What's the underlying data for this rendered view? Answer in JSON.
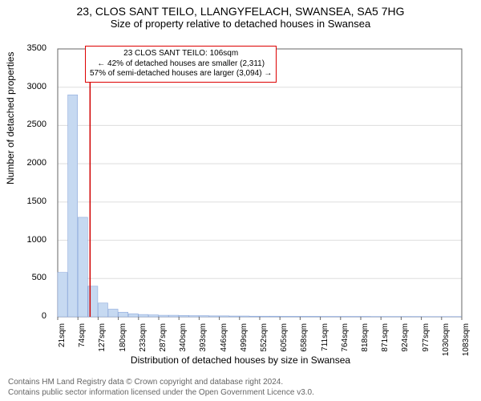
{
  "titles": {
    "main": "23, CLOS SANT TEILO, LLANGYFELACH, SWANSEA, SA5 7HG",
    "sub": "Size of property relative to detached houses in Swansea"
  },
  "axes": {
    "ylabel": "Number of detached properties",
    "xlabel": "Distribution of detached houses by size in Swansea"
  },
  "callout": {
    "line1": "23 CLOS SANT TEILO: 106sqm",
    "line2": "← 42% of detached houses are smaller (2,311)",
    "line3": "57% of semi-detached houses are larger (3,094) →"
  },
  "footer": {
    "line1": "Contains HM Land Registry data © Crown copyright and database right 2024.",
    "line2": "Contains public sector information licensed under the Open Government Licence v3.0."
  },
  "chart": {
    "type": "histogram",
    "ylim": [
      0,
      3500
    ],
    "ytick_step": 500,
    "yticks": [
      0,
      500,
      1000,
      1500,
      2000,
      2500,
      3000,
      3500
    ],
    "xticks": [
      "21sqm",
      "74sqm",
      "127sqm",
      "180sqm",
      "233sqm",
      "287sqm",
      "340sqm",
      "393sqm",
      "446sqm",
      "499sqm",
      "552sqm",
      "605sqm",
      "658sqm",
      "711sqm",
      "764sqm",
      "818sqm",
      "871sqm",
      "924sqm",
      "977sqm",
      "1030sqm",
      "1083sqm"
    ],
    "bars": [
      580,
      2900,
      1300,
      400,
      180,
      100,
      60,
      40,
      30,
      25,
      20,
      20,
      18,
      15,
      15,
      12,
      12,
      10,
      10,
      8,
      8,
      8,
      6,
      6,
      6,
      6,
      5,
      5,
      5,
      5,
      5,
      4,
      4,
      4,
      4,
      4,
      3,
      3,
      3,
      3
    ],
    "marker_x_value": 106,
    "x_range": [
      21,
      1083
    ],
    "bar_fill": "#c6d9f1",
    "bar_stroke": "#8faadc",
    "grid_color": "#dddddd",
    "axis_color": "#666666",
    "marker_color": "#d00000",
    "background": "#ffffff"
  }
}
